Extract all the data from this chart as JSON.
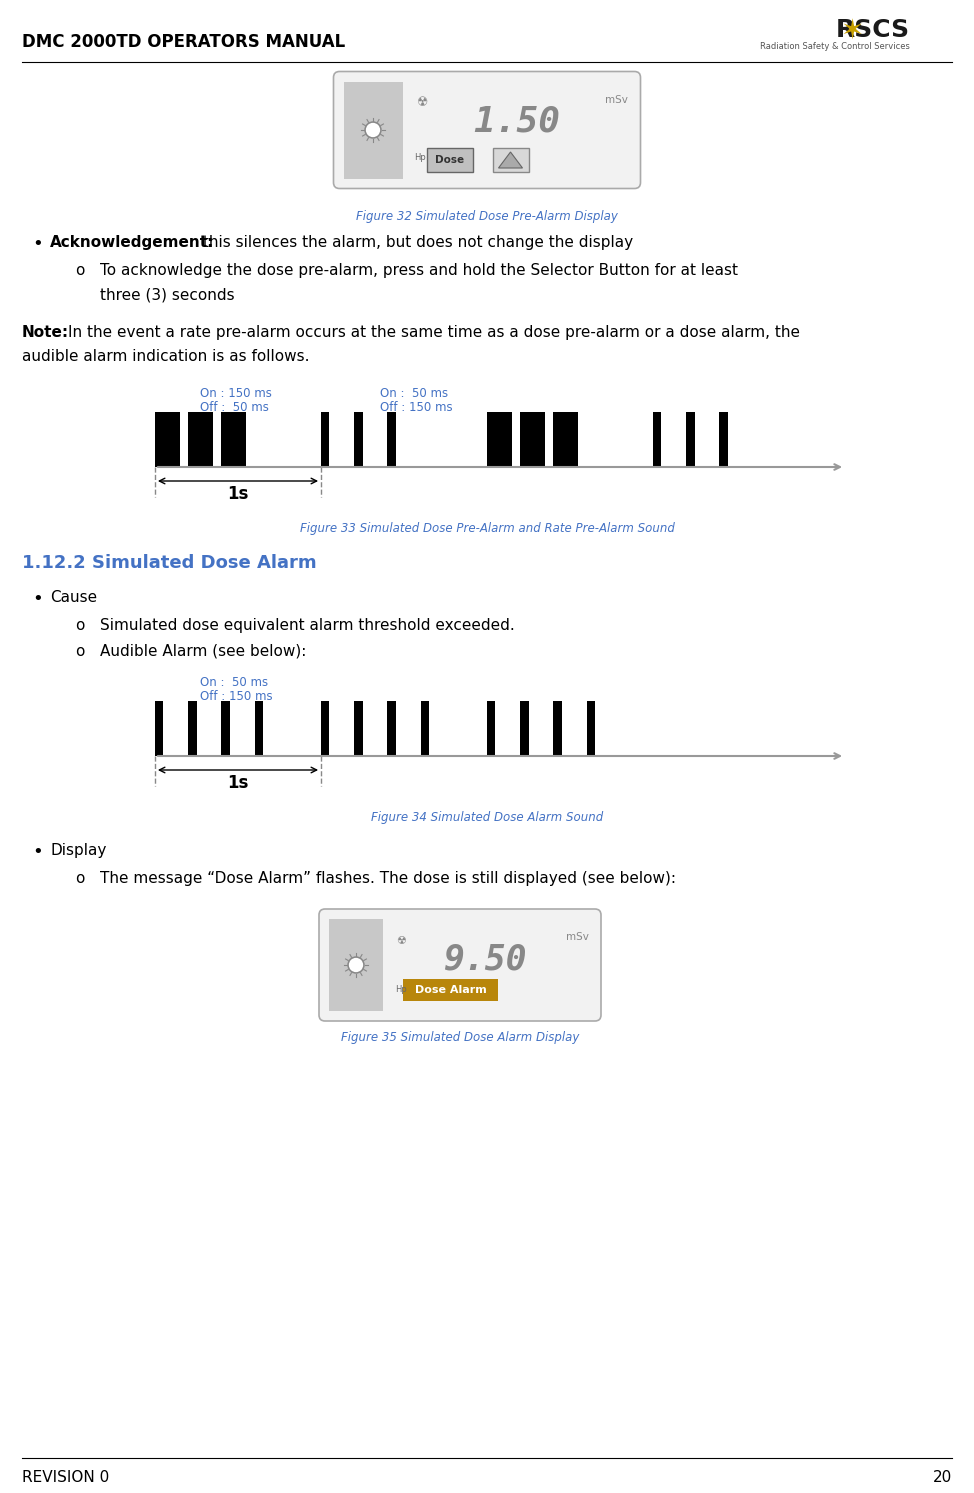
{
  "page_title": "DMC 2000TD OPERATORS MANUAL",
  "revision_text": "REVISION 0",
  "page_number": "20",
  "bg_color": "#ffffff",
  "title_color": "#000000",
  "fig_caption_color": "#4472C4",
  "section_heading_color": "#4472C4",
  "fig32_caption": "Figure 32 Simulated Dose Pre-Alarm Display",
  "fig33_caption": "Figure 33 Simulated Dose Pre-Alarm and Rate Pre-Alarm Sound",
  "fig34_caption": "Figure 34 Simulated Dose Alarm Sound",
  "fig35_caption": "Figure 35 Simulated Dose Alarm Display",
  "section_112": "1.12.2 Simulated Dose Alarm",
  "fig33_on1": "On : 150 ms",
  "fig33_off1": "Off :  50 ms",
  "fig33_on2": "On :  50 ms",
  "fig33_off2": "Off : 150 ms",
  "fig34_on": "On :  50 ms",
  "fig34_off": "Off : 150 ms",
  "bar_color": "#000000",
  "line_color": "#999999",
  "dashed_color": "#888888"
}
